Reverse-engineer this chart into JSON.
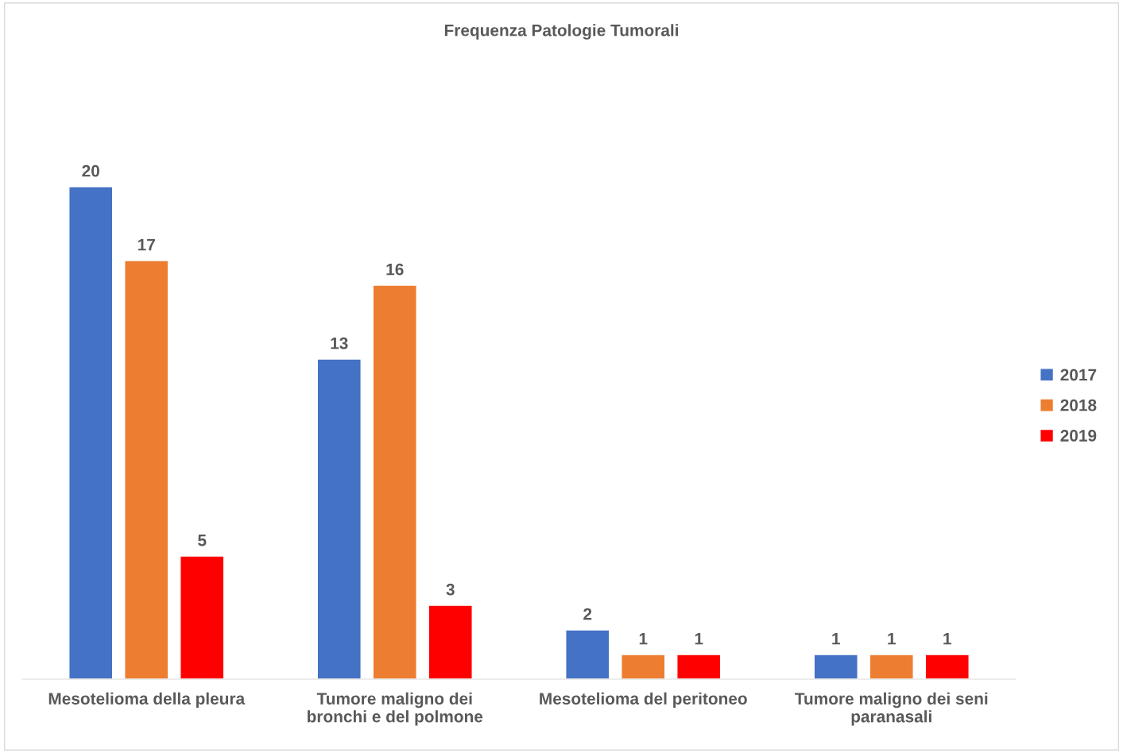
{
  "chart_data": {
    "type": "bar",
    "title": "Frequenza Patologie Tumorali",
    "categories": [
      "Mesotelioma della pleura",
      "Tumore maligno dei bronchi e del polmone",
      "Mesotelioma del peritoneo",
      "Tumore maligno dei seni paranasali"
    ],
    "series": [
      {
        "name": "2017",
        "color": "#4472c4",
        "values": [
          20,
          13,
          2,
          1
        ]
      },
      {
        "name": "2018",
        "color": "#ed7d31",
        "values": [
          17,
          16,
          1,
          1
        ]
      },
      {
        "name": "2019",
        "color": "#ff0000",
        "values": [
          5,
          3,
          1,
          1
        ]
      }
    ],
    "data_labels": true,
    "legend": "right"
  }
}
